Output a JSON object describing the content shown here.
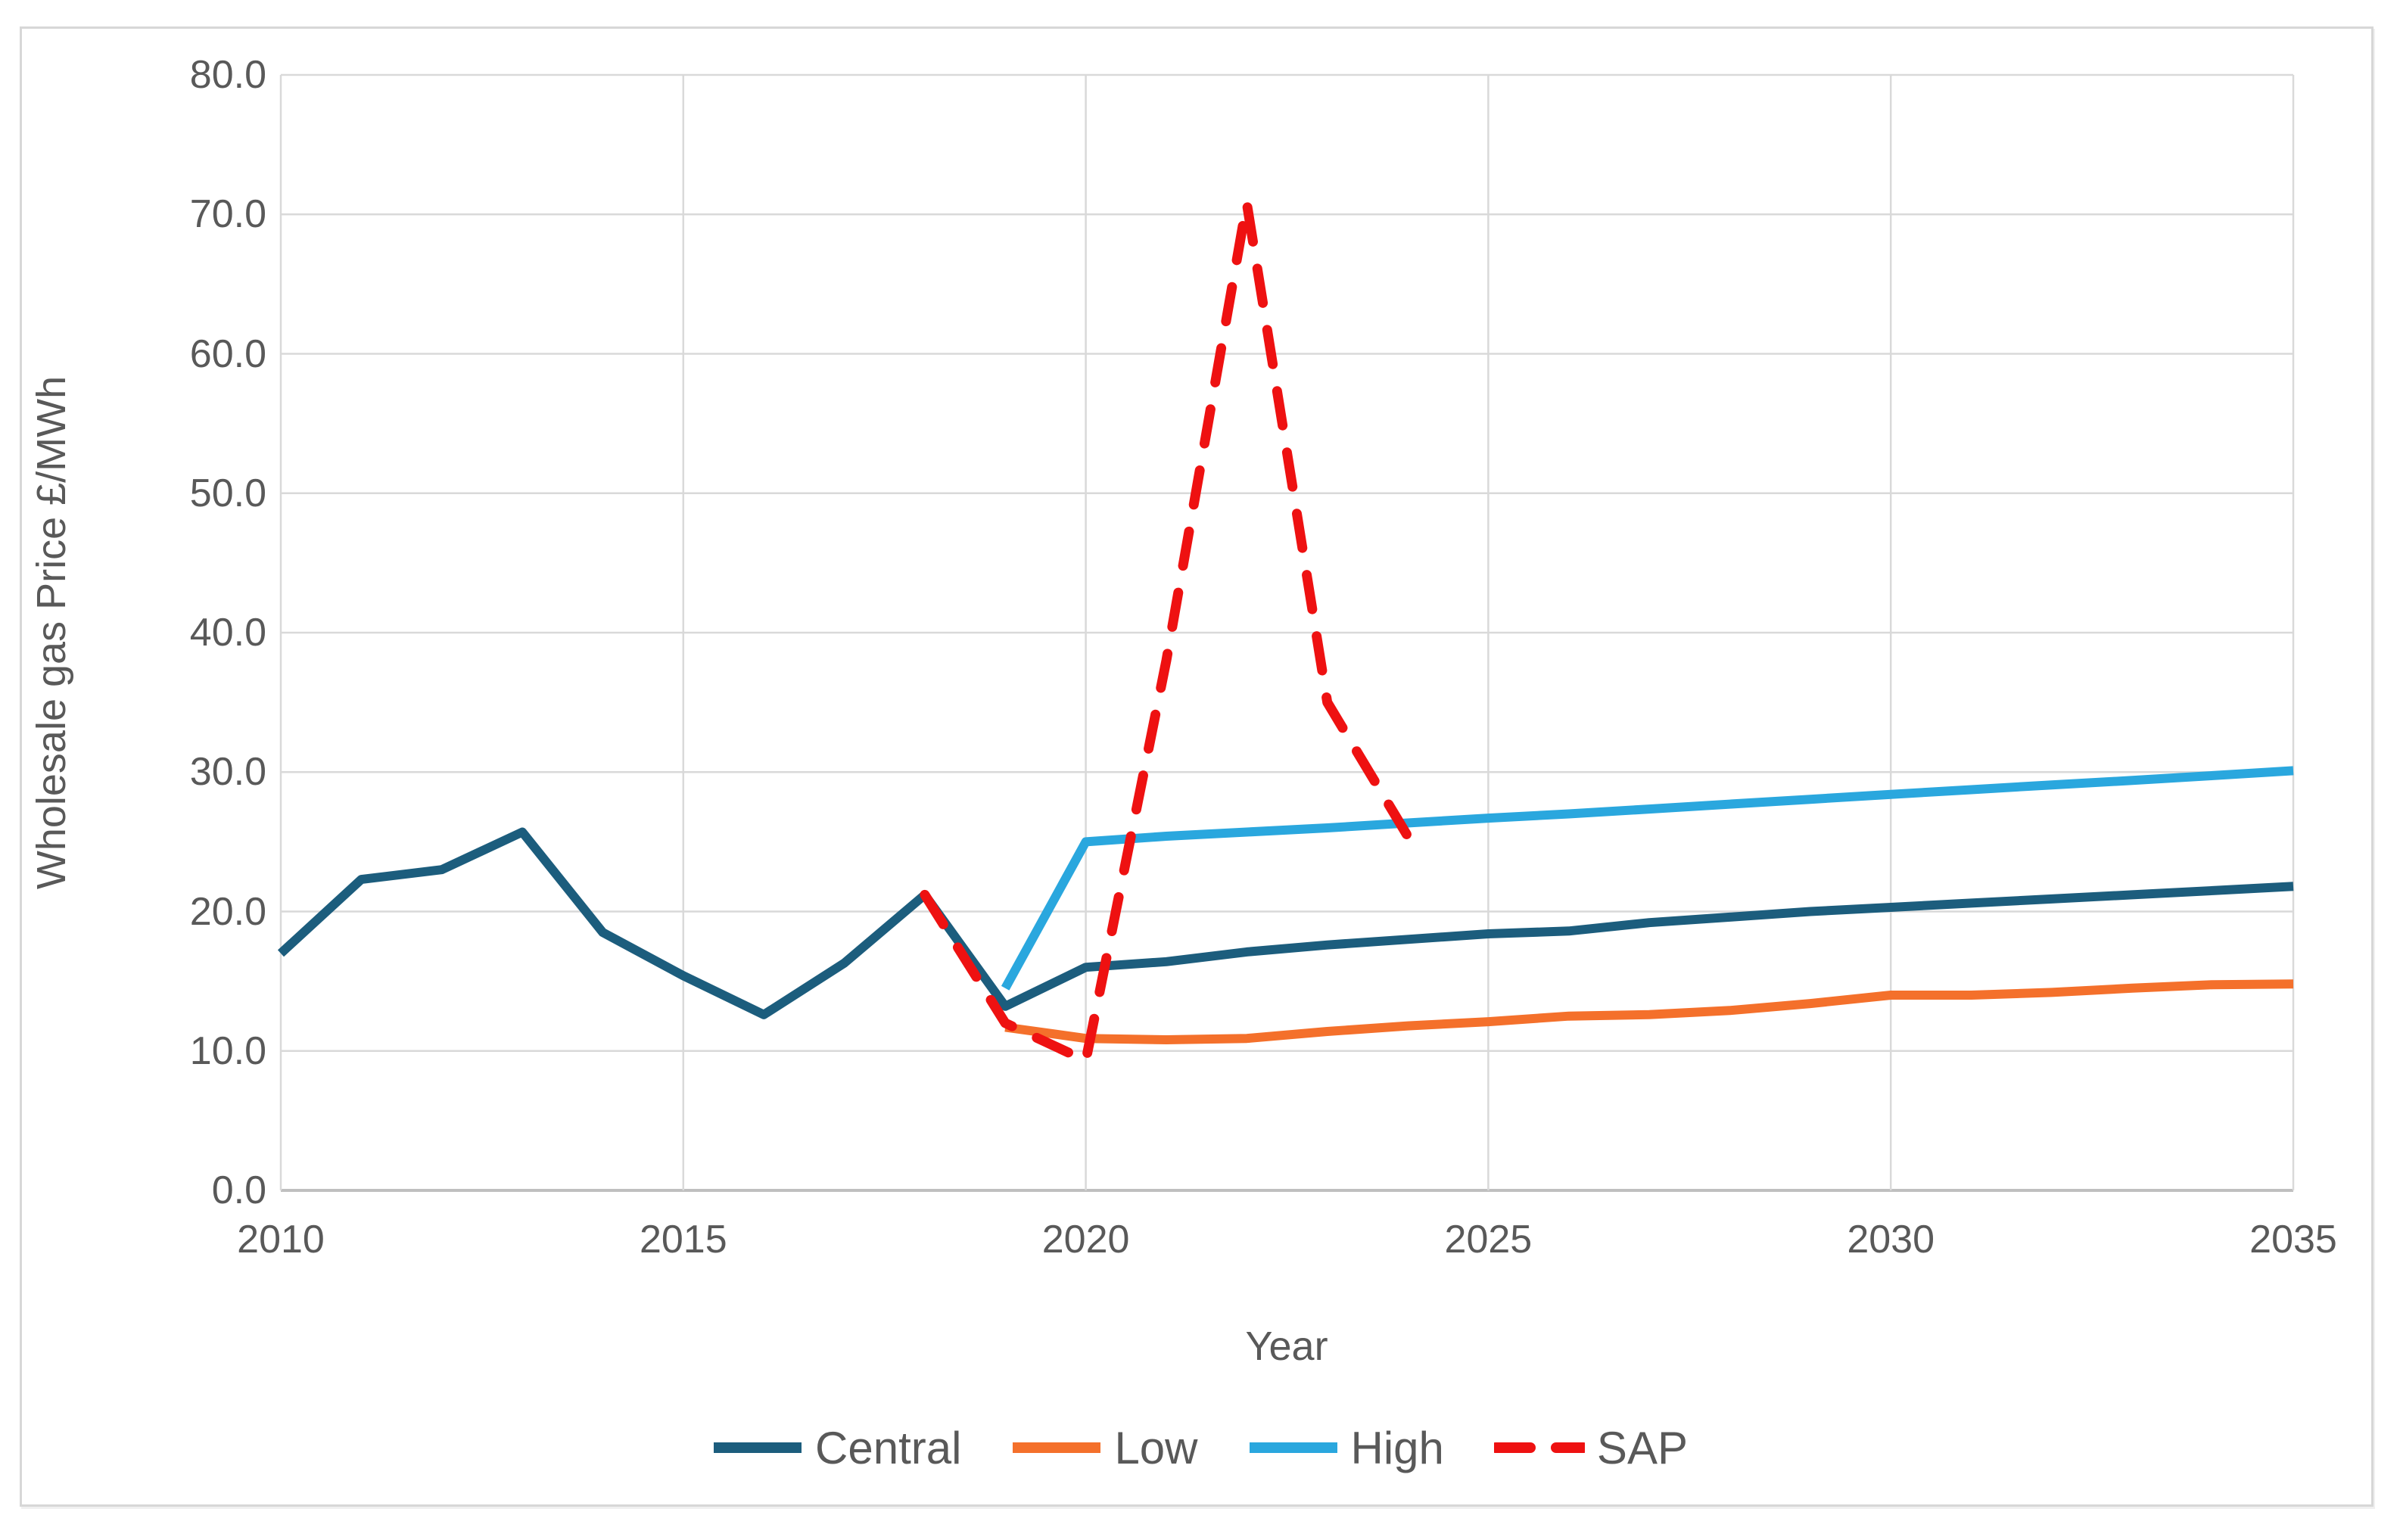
{
  "axes": {
    "y_title": "Wholesale gas Price £/MWh",
    "x_title": "Year"
  },
  "chart_data": {
    "type": "line",
    "title": "",
    "xlabel": "Year",
    "ylabel": "Wholesale gas Price £/MWh",
    "xlim": [
      2010,
      2035
    ],
    "ylim": [
      0,
      80
    ],
    "x_ticks": [
      2010,
      2015,
      2020,
      2025,
      2030,
      2035
    ],
    "x_tick_labels": [
      "2010",
      "2015",
      "2020",
      "2025",
      "2030",
      "2035"
    ],
    "y_ticks": [
      0,
      10,
      20,
      30,
      40,
      50,
      60,
      70,
      80
    ],
    "y_tick_labels": [
      "0.0",
      "10.0",
      "20.0",
      "30.0",
      "40.0",
      "50.0",
      "60.0",
      "70.0",
      "80.0"
    ],
    "grid": true,
    "grid_color": "#d9d9d9",
    "axis_line_color": "#bfbfbf",
    "text_color": "#595959",
    "legend_position": "bottom",
    "series": [
      {
        "name": "Central",
        "color": "#1C5D7D",
        "style": "solid",
        "width": 12,
        "points": [
          [
            2010,
            17.0
          ],
          [
            2011,
            22.3
          ],
          [
            2012,
            23.0
          ],
          [
            2013,
            25.7
          ],
          [
            2014,
            18.5
          ],
          [
            2015,
            15.4
          ],
          [
            2016,
            12.6
          ],
          [
            2017,
            16.3
          ],
          [
            2018,
            21.2
          ],
          [
            2019,
            13.2
          ],
          [
            2020,
            16.0
          ],
          [
            2021,
            16.4
          ],
          [
            2022,
            17.1
          ],
          [
            2023,
            17.6
          ],
          [
            2024,
            18.0
          ],
          [
            2025,
            18.4
          ],
          [
            2026,
            18.6
          ],
          [
            2027,
            19.2
          ],
          [
            2028,
            19.6
          ],
          [
            2029,
            20.0
          ],
          [
            2030,
            20.3
          ],
          [
            2031,
            20.6
          ],
          [
            2032,
            20.9
          ],
          [
            2033,
            21.2
          ],
          [
            2034,
            21.5
          ],
          [
            2035,
            21.8
          ]
        ]
      },
      {
        "name": "Low",
        "color": "#F4702B",
        "style": "solid",
        "width": 12,
        "points": [
          [
            2019,
            11.7
          ],
          [
            2020,
            10.9
          ],
          [
            2021,
            10.8
          ],
          [
            2022,
            10.9
          ],
          [
            2023,
            11.4
          ],
          [
            2024,
            11.8
          ],
          [
            2025,
            12.1
          ],
          [
            2026,
            12.5
          ],
          [
            2027,
            12.6
          ],
          [
            2028,
            12.9
          ],
          [
            2029,
            13.4
          ],
          [
            2030,
            14.0
          ],
          [
            2031,
            14.0
          ],
          [
            2032,
            14.2
          ],
          [
            2033,
            14.5
          ],
          [
            2034,
            14.75
          ],
          [
            2035,
            14.8
          ]
        ]
      },
      {
        "name": "High",
        "color": "#2AA7DE",
        "style": "solid",
        "width": 12,
        "points": [
          [
            2019,
            14.5
          ],
          [
            2020,
            25.0
          ],
          [
            2021,
            25.4
          ],
          [
            2022,
            25.7
          ],
          [
            2023,
            26.0
          ],
          [
            2024,
            26.35
          ],
          [
            2025,
            26.7
          ],
          [
            2026,
            27.0
          ],
          [
            2027,
            27.35
          ],
          [
            2028,
            27.7
          ],
          [
            2029,
            28.05
          ],
          [
            2030,
            28.4
          ],
          [
            2031,
            28.74
          ],
          [
            2032,
            29.08
          ],
          [
            2033,
            29.4
          ],
          [
            2034,
            29.75
          ],
          [
            2035,
            30.1
          ]
        ]
      },
      {
        "name": "SAP",
        "color": "#EE1111",
        "style": "dashed",
        "width": 13,
        "points": [
          [
            2018,
            21.2
          ],
          [
            2019,
            12.0
          ],
          [
            2020,
            9.3
          ],
          [
            2021,
            38.0
          ],
          [
            2022,
            70.8
          ],
          [
            2023,
            35.0
          ],
          [
            2024,
            25.4
          ]
        ]
      }
    ]
  }
}
